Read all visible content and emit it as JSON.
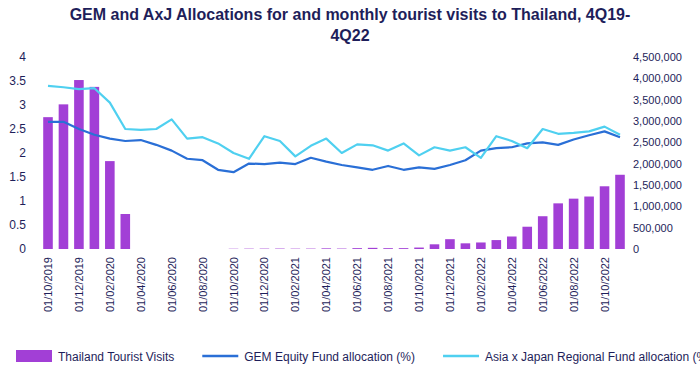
{
  "chart_data": {
    "type": "bar",
    "title": "GEM and AxJ Allocations for and monthly tourist visits to Thailand, 4Q19-4Q22",
    "categories": [
      "01/10/2019",
      null,
      "01/12/2019",
      null,
      "01/02/2020",
      null,
      "01/04/2020",
      null,
      "01/06/2020",
      null,
      "01/08/2020",
      null,
      "01/10/2020",
      null,
      "01/12/2020",
      null,
      "01/02/2021",
      null,
      "01/04/2021",
      null,
      "01/06/2021",
      null,
      "01/08/2021",
      null,
      "01/10/2021",
      null,
      "01/12/2021",
      null,
      "01/02/2022",
      null,
      "01/04/2022",
      null,
      "01/06/2022",
      null,
      "01/08/2022",
      null,
      "01/10/2022",
      null
    ],
    "series": [
      {
        "name": "Thailand Tourist Visits",
        "type": "bar",
        "color": "#a23fd6",
        "axis": "y2",
        "values": [
          3090000,
          3390000,
          3960000,
          3800000,
          2060000,
          820000,
          0,
          0,
          0,
          0,
          0,
          0,
          6000,
          8000,
          9000,
          10000,
          8000,
          9000,
          15000,
          10000,
          20000,
          27000,
          19000,
          20000,
          34000,
          110000,
          230000,
          133000,
          153000,
          209000,
          293000,
          522000,
          768000,
          1070000,
          1180000,
          1230000,
          1470000,
          1740000
        ]
      },
      {
        "name": "GEM Equity Fund allocation (%)",
        "type": "line",
        "color": "#2a6fd6",
        "values": [
          2.65,
          2.65,
          2.5,
          2.38,
          2.3,
          2.25,
          2.27,
          2.17,
          2.05,
          1.88,
          1.85,
          1.65,
          1.6,
          1.78,
          1.77,
          1.8,
          1.77,
          1.9,
          1.82,
          1.75,
          1.7,
          1.65,
          1.73,
          1.65,
          1.7,
          1.67,
          1.75,
          1.85,
          2.05,
          2.1,
          2.12,
          2.2,
          2.22,
          2.17,
          2.28,
          2.37,
          2.45,
          2.33
        ]
      },
      {
        "name": "Asia x Japan Regional Fund allocation (%)",
        "type": "line",
        "color": "#4fd0f0",
        "values": [
          3.4,
          3.37,
          3.33,
          3.35,
          3.05,
          2.5,
          2.48,
          2.5,
          2.7,
          2.3,
          2.33,
          2.2,
          2.0,
          1.88,
          2.35,
          2.25,
          1.93,
          2.15,
          2.3,
          2.0,
          2.18,
          2.16,
          2.05,
          2.2,
          1.95,
          2.12,
          2.05,
          2.12,
          1.9,
          2.35,
          2.25,
          2.1,
          2.5,
          2.4,
          2.42,
          2.45,
          2.55,
          2.38
        ]
      }
    ],
    "ylim": [
      0,
      4
    ],
    "yticks": [
      0,
      0.5,
      1,
      1.5,
      2,
      2.5,
      3,
      3.5,
      4
    ],
    "y2lim": [
      0,
      4500000
    ],
    "y2ticks": [
      0,
      {
        "value": 500000,
        "label": "500,000"
      },
      {
        "value": 1000000,
        "label": "1,000,000"
      },
      {
        "value": 1500000,
        "label": "1,500,000"
      },
      {
        "value": 2000000,
        "label": "2,000,000"
      },
      {
        "value": 2500000,
        "label": "2,500,000"
      },
      {
        "value": 3000000,
        "label": "3,000,000"
      },
      {
        "value": 3500000,
        "label": "3,500,000"
      },
      {
        "value": 4000000,
        "label": "4,000,000"
      },
      {
        "value": 4500000,
        "label": "4,500,000"
      }
    ],
    "grid": false,
    "legend": "bottom"
  }
}
